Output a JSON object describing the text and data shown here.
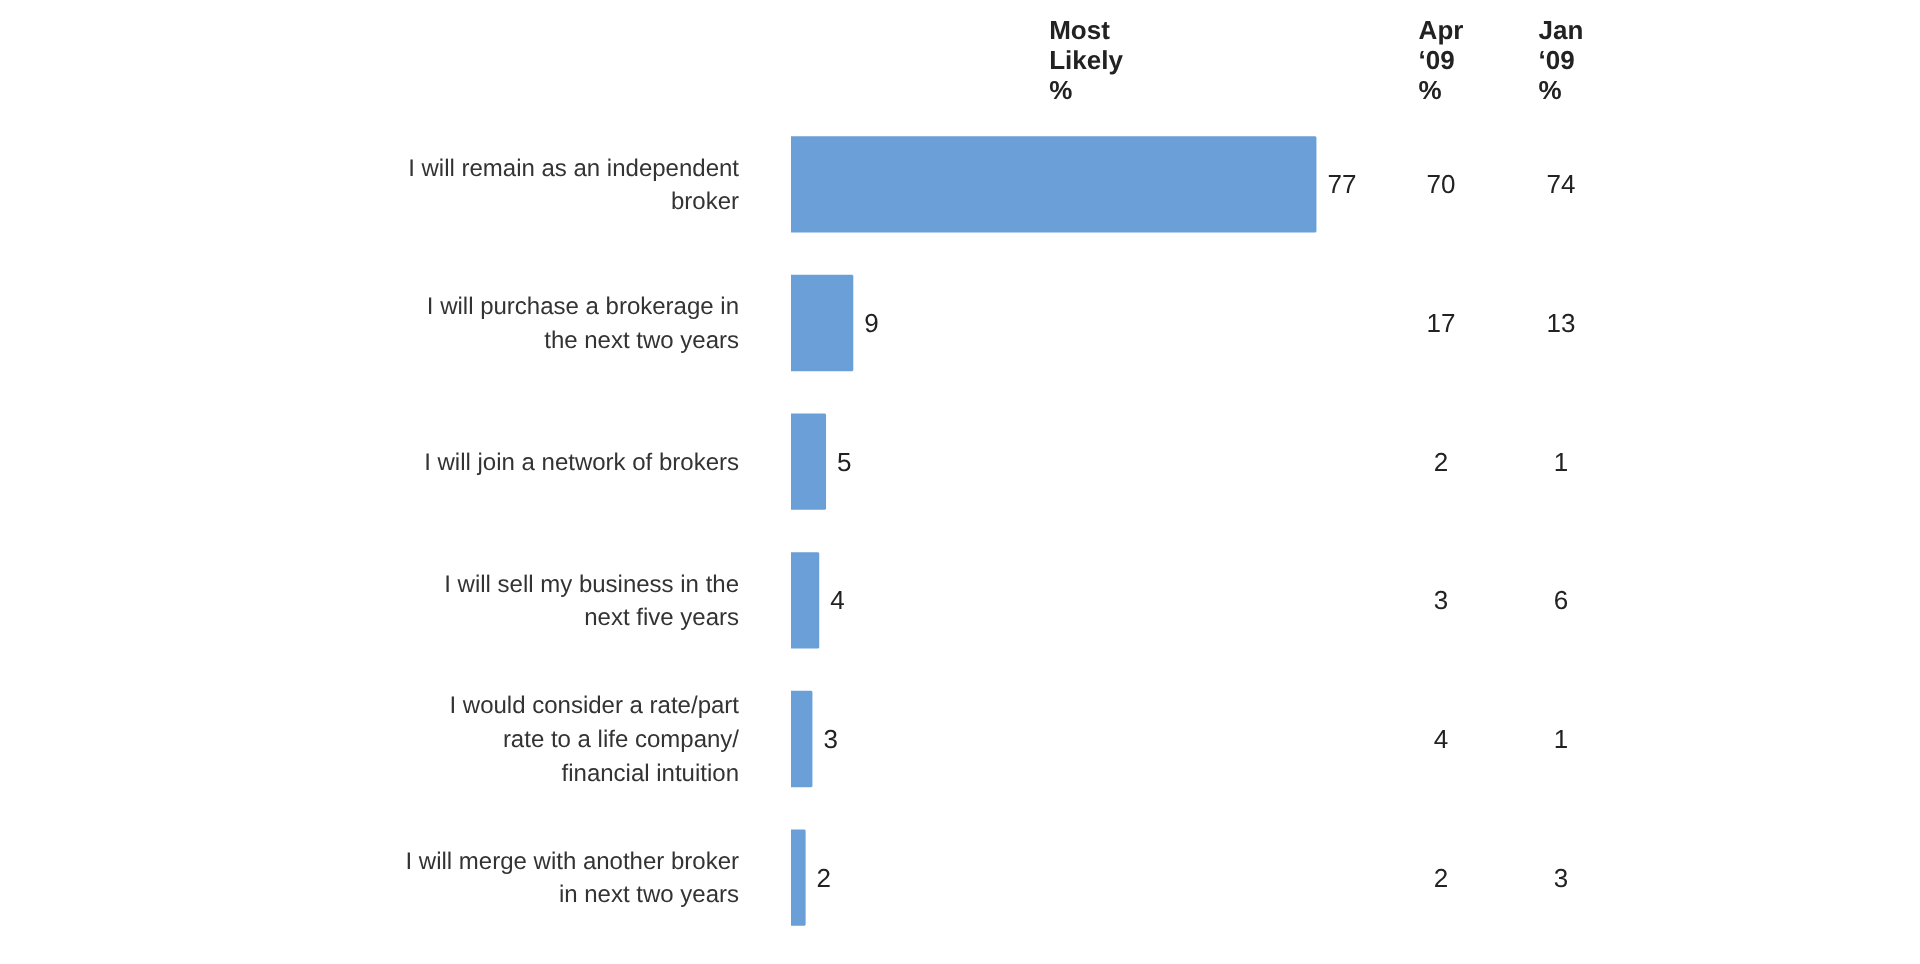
{
  "chart_data": [
    {
      "type": "bar",
      "orientation": "horizontal",
      "data_labels": true,
      "title": "Most Likely %",
      "tick_labels": "y",
      "color": "#6a9fd8",
      "categories": [
        "I will remain as an independent broker",
        "I will purchase a brokerage in the next two years",
        "I will join a network of brokers",
        "I will sell my business in the next five years",
        "I would consider a rate/part rate to a life company/ financial intuition",
        "I will merge with another broker in next two years"
      ],
      "values": [
        77,
        9,
        5,
        4,
        3,
        2
      ]
    },
    {
      "type": "other",
      "title": "Apr ‘09 %",
      "data_labels": true,
      "values": [
        70,
        17,
        2,
        3,
        4,
        2
      ]
    },
    {
      "type": "other",
      "title": "Jan ‘09 %",
      "data_labels": true,
      "values": [
        74,
        13,
        1,
        6,
        1,
        3
      ]
    }
  ]
}
